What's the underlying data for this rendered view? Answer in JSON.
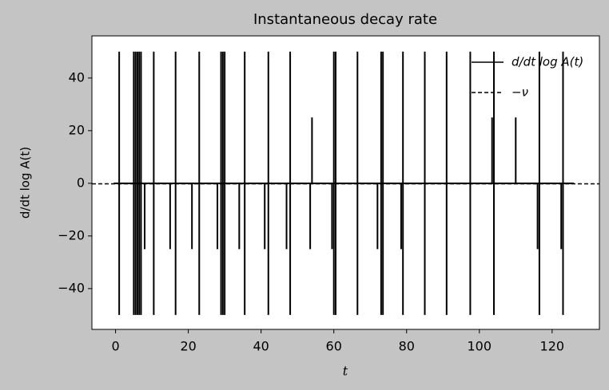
{
  "chart_data": {
    "type": "line",
    "title": "Instantaneous decay rate",
    "x_label": "t",
    "y_label": "d/dt log A(t)",
    "xlim": [
      -6.5,
      133
    ],
    "ylim": [
      -55.5,
      56
    ],
    "xticks": [
      0,
      20,
      40,
      60,
      80,
      100,
      120
    ],
    "yticks": [
      {
        "value": -40,
        "label": "−40"
      },
      {
        "value": -20,
        "label": "−20"
      },
      0,
      20,
      40
    ],
    "grid": false,
    "legend": "upper right",
    "series": [
      {
        "name": "d/dt log A(t)",
        "color": "#000000",
        "style": "solid",
        "x": [
          -0.5,
          1,
          1,
          1,
          1,
          5,
          5,
          5,
          5,
          5.5,
          5.5,
          5.5,
          5.5,
          6,
          6,
          6,
          6,
          6.5,
          6.5,
          6.5,
          6.5,
          7,
          7,
          7,
          7,
          8,
          8,
          8,
          10.5,
          10.5,
          10.5,
          10.5,
          15,
          15,
          15,
          16.5,
          16.5,
          16.5,
          16.5,
          21,
          21,
          21,
          23,
          23,
          23,
          23,
          28,
          28,
          28,
          29,
          29,
          29,
          29,
          29.5,
          29.5,
          29.5,
          29.5,
          30,
          30,
          30,
          30,
          34,
          34,
          34,
          35.5,
          35.5,
          35.5,
          35.5,
          41,
          41,
          41,
          42,
          42,
          42,
          42,
          47,
          47,
          47,
          48,
          48,
          48,
          48,
          53.5,
          53.5,
          53.5,
          54,
          54,
          54,
          59.5,
          59.5,
          59.5,
          60,
          60,
          60,
          60,
          60.5,
          60.5,
          60.5,
          60.5,
          66.5,
          66.5,
          66.5,
          66.5,
          72,
          72,
          72,
          73,
          73,
          73,
          73,
          73.5,
          73.5,
          73.5,
          73.5,
          78.5,
          78.5,
          78.5,
          79,
          79,
          79,
          79,
          85,
          85,
          85,
          85,
          91,
          91,
          91,
          91,
          97.5,
          97.5,
          97.5,
          97.5,
          103.5,
          103.5,
          103.5,
          104,
          104,
          104,
          104,
          110,
          110,
          110,
          116,
          116,
          116,
          116.5,
          116.5,
          116.5,
          116.5,
          122.5,
          122.5,
          122.5,
          123,
          123,
          123,
          123,
          126
        ],
        "values": [
          0,
          0,
          50,
          -50,
          0,
          0,
          50,
          -50,
          0,
          0,
          50,
          -50,
          0,
          0,
          50,
          -50,
          0,
          0,
          50,
          -50,
          0,
          0,
          50,
          -50,
          0,
          0,
          -25,
          0,
          0,
          50,
          -50,
          0,
          0,
          -25,
          0,
          0,
          50,
          -50,
          0,
          0,
          -25,
          0,
          0,
          50,
          -50,
          0,
          0,
          -25,
          0,
          0,
          50,
          -50,
          0,
          0,
          50,
          -50,
          0,
          0,
          50,
          -50,
          0,
          0,
          -25,
          0,
          0,
          50,
          -50,
          0,
          0,
          -25,
          0,
          0,
          50,
          -50,
          0,
          0,
          -25,
          0,
          0,
          50,
          -50,
          0,
          0,
          -25,
          0,
          0,
          25,
          0,
          0,
          -25,
          0,
          0,
          50,
          -50,
          0,
          0,
          50,
          -50,
          0,
          0,
          50,
          -50,
          0,
          0,
          -25,
          0,
          0,
          50,
          -50,
          0,
          0,
          50,
          -50,
          0,
          0,
          -25,
          0,
          0,
          50,
          -50,
          0,
          0,
          50,
          -50,
          0,
          0,
          50,
          -50,
          0,
          0,
          50,
          -50,
          0,
          0,
          25,
          0,
          0,
          50,
          -50,
          0,
          0,
          25,
          0,
          0,
          -25,
          0,
          0,
          50,
          -50,
          0,
          0,
          -25,
          0,
          0,
          50,
          -50,
          0,
          0
        ]
      },
      {
        "name": "−ν",
        "color": "#000000",
        "style": "dashed",
        "x": [
          -6.5,
          133
        ],
        "values": [
          -0.2,
          -0.2
        ]
      }
    ]
  }
}
